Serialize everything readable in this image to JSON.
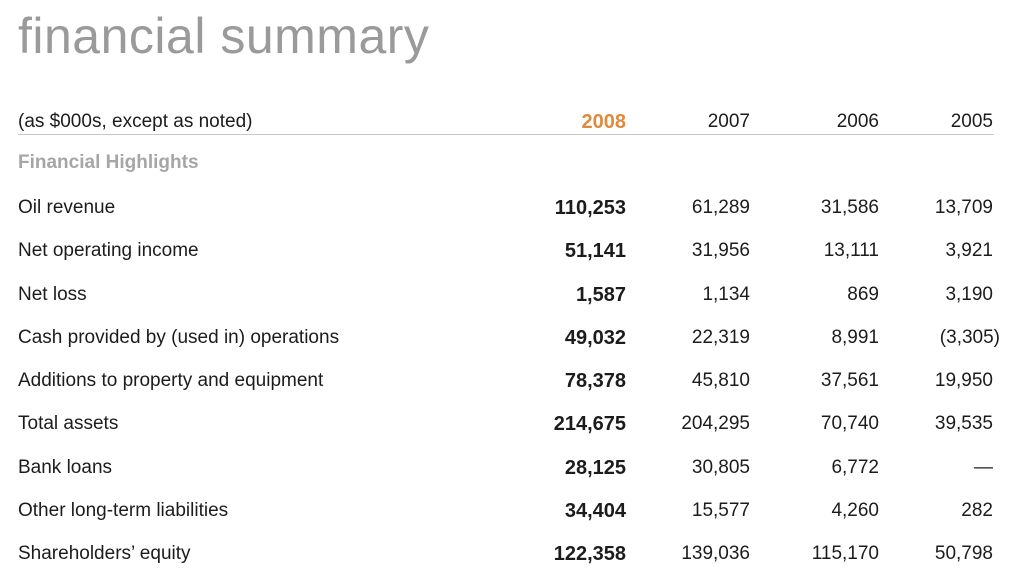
{
  "title": "financial summary",
  "header": {
    "label": "(as $000s, except as noted)",
    "years": [
      "2008",
      "2007",
      "2006",
      "2005"
    ]
  },
  "section_title": "Financial Highlights",
  "rows": [
    {
      "label": "Oil revenue",
      "values": [
        "110,253",
        "61,289",
        "31,586",
        "13,709"
      ]
    },
    {
      "label": "Net operating income",
      "values": [
        "51,141",
        "31,956",
        "13,111",
        "3,921"
      ]
    },
    {
      "label": "Net loss",
      "values": [
        "1,587",
        "1,134",
        "869",
        "3,190"
      ]
    },
    {
      "label": "Cash provided by (used in) operations",
      "values": [
        "49,032",
        "22,319",
        "8,991",
        "(3,305)"
      ]
    },
    {
      "label": "Additions to property and equipment",
      "values": [
        "78,378",
        "45,810",
        "37,561",
        "19,950"
      ]
    },
    {
      "label": "Total assets",
      "values": [
        "214,675",
        "204,295",
        "70,740",
        "39,535"
      ]
    },
    {
      "label": "Bank loans",
      "values": [
        "28,125",
        "30,805",
        "6,772",
        "—"
      ]
    },
    {
      "label": "Other long-term liabilities",
      "values": [
        "34,404",
        "15,577",
        "4,260",
        "282"
      ]
    },
    {
      "label": "Shareholders’ equity",
      "values": [
        "122,358",
        "139,036",
        "115,170",
        "50,798"
      ]
    }
  ],
  "colors": {
    "accent": "#e08a3c",
    "title": "#9a9a9a",
    "section": "#a6a6a6"
  }
}
